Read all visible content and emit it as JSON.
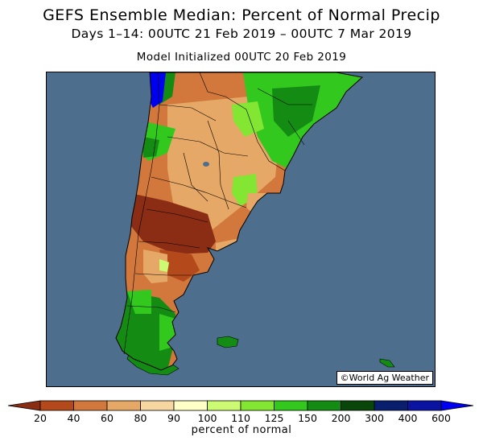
{
  "header": {
    "title": "GEFS Ensemble Median: Percent of Normal Precip",
    "subtitle": "Days 1–14: 00UTC 21 Feb 2019 – 00UTC 7 Mar 2019",
    "init": "Model Initialized 00UTC 20 Feb 2019"
  },
  "map": {
    "credit": "©World Ag Weather",
    "ocean_color": "#4e6e8e",
    "region": "southern South America"
  },
  "legend": {
    "title": "percent of normal",
    "ticks": [
      "20",
      "40",
      "60",
      "80",
      "90",
      "100",
      "110",
      "125",
      "150",
      "200",
      "300",
      "400",
      "600"
    ],
    "colors": [
      "#8b2d14",
      "#b44a1c",
      "#d2783c",
      "#e6a866",
      "#f7d6a0",
      "#ffffc8",
      "#cdfa73",
      "#82e632",
      "#32c81e",
      "#148c14",
      "#0a460a",
      "#0a1e6e",
      "#0a14a0",
      "#0000f0"
    ]
  }
}
